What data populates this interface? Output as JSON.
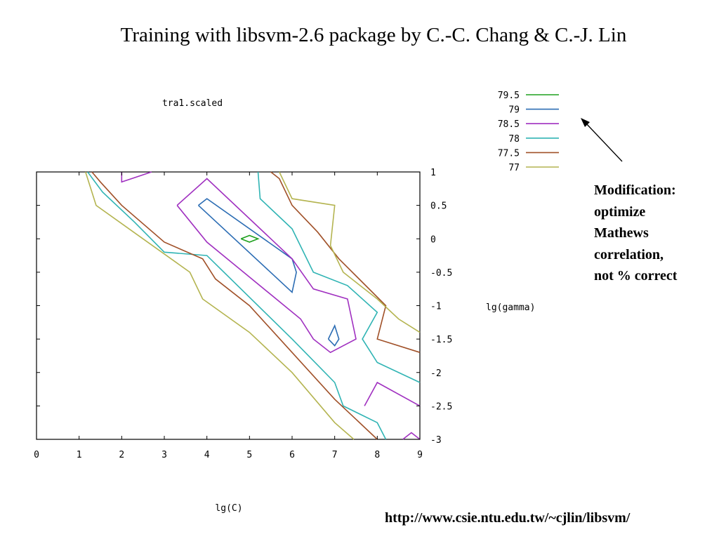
{
  "slide": {
    "title": "Training with libsvm-2.6  package by C.-C. Chang & C.-J. Lin",
    "annotation_lines": [
      "Modification:",
      "optimize",
      "Mathews",
      "correlation,",
      "not % correct"
    ],
    "url": "http://www.csie.ntu.edu.tw/~cjlin/libsvm/"
  },
  "chart_data": {
    "type": "contour",
    "title": "tra1.scaled",
    "xlabel": "lg(C)",
    "ylabel": "lg(gamma)",
    "xlim": [
      0,
      9
    ],
    "ylim": [
      -3,
      1
    ],
    "xticks": [
      "0",
      "1",
      "2",
      "3",
      "4",
      "5",
      "6",
      "7",
      "8",
      "9"
    ],
    "yticks": [
      "1",
      "0.5",
      "0",
      "-0.5",
      "-1",
      "-1.5",
      "-2",
      "-2.5",
      "-3"
    ],
    "legend_position": "top-right",
    "series": [
      {
        "name": "79.5",
        "color": "#1ea01e",
        "lines": [
          [
            [
              4.8,
              0
            ],
            [
              5.0,
              0.05
            ],
            [
              5.2,
              0
            ],
            [
              5.0,
              -0.05
            ],
            [
              4.8,
              0
            ]
          ]
        ]
      },
      {
        "name": "79",
        "color": "#2c6db4",
        "lines": [
          [
            [
              3.8,
              0.5
            ],
            [
              4.0,
              0.6
            ],
            [
              6.0,
              -0.3
            ],
            [
              6.1,
              -0.5
            ],
            [
              6.0,
              -0.8
            ],
            [
              3.8,
              0.5
            ]
          ],
          [
            [
              6.85,
              -1.5
            ],
            [
              7.0,
              -1.3
            ],
            [
              7.1,
              -1.5
            ],
            [
              7.0,
              -1.6
            ],
            [
              6.85,
              -1.5
            ]
          ]
        ]
      },
      {
        "name": "78.5",
        "color": "#a030c0",
        "lines": [
          [
            [
              2.0,
              1.0
            ],
            [
              2.0,
              0.85
            ],
            [
              2.7,
              1.0
            ]
          ],
          [
            [
              3.3,
              0.5
            ],
            [
              4.0,
              0.9
            ],
            [
              6.0,
              -0.3
            ],
            [
              6.5,
              -0.75
            ],
            [
              7.3,
              -0.9
            ],
            [
              7.5,
              -1.5
            ],
            [
              6.9,
              -1.7
            ],
            [
              6.5,
              -1.5
            ],
            [
              6.2,
              -1.2
            ],
            [
              4.0,
              -0.05
            ],
            [
              3.3,
              0.5
            ]
          ],
          [
            [
              7.7,
              -2.5
            ],
            [
              8.0,
              -2.15
            ],
            [
              9.0,
              -2.5
            ]
          ],
          [
            [
              8.6,
              -3.0
            ],
            [
              8.8,
              -2.9
            ],
            [
              9.0,
              -3.0
            ]
          ]
        ]
      },
      {
        "name": "78",
        "color": "#30b4b4",
        "lines": [
          [
            [
              5.2,
              1.0
            ],
            [
              5.25,
              0.6
            ],
            [
              6.0,
              0.15
            ],
            [
              6.5,
              -0.5
            ],
            [
              7.3,
              -0.7
            ],
            [
              8.0,
              -1.1
            ],
            [
              7.65,
              -1.5
            ],
            [
              8.0,
              -1.85
            ],
            [
              9.0,
              -2.15
            ]
          ],
          [
            [
              1.2,
              1.0
            ],
            [
              1.55,
              0.7
            ],
            [
              2.3,
              0.25
            ],
            [
              3.0,
              -0.2
            ],
            [
              4.0,
              -0.25
            ],
            [
              6.0,
              -1.5
            ],
            [
              7.0,
              -2.15
            ],
            [
              7.2,
              -2.5
            ],
            [
              8.0,
              -2.75
            ],
            [
              8.2,
              -3.0
            ]
          ]
        ]
      },
      {
        "name": "77.5",
        "color": "#a05028",
        "lines": [
          [
            [
              5.5,
              1.0
            ],
            [
              5.7,
              0.9
            ],
            [
              6.0,
              0.5
            ],
            [
              6.6,
              0.1
            ],
            [
              7.1,
              -0.3
            ],
            [
              8.2,
              -1.0
            ],
            [
              8.0,
              -1.5
            ],
            [
              9.0,
              -1.7
            ]
          ],
          [
            [
              1.3,
              1.0
            ],
            [
              1.5,
              0.85
            ],
            [
              2.0,
              0.5
            ],
            [
              3.0,
              -0.05
            ],
            [
              3.9,
              -0.3
            ],
            [
              4.2,
              -0.6
            ],
            [
              5.0,
              -1.0
            ],
            [
              6.0,
              -1.7
            ],
            [
              7.0,
              -2.4
            ],
            [
              8.0,
              -3.0
            ]
          ]
        ]
      },
      {
        "name": "77",
        "color": "#b4b450",
        "lines": [
          [
            [
              5.7,
              1.0
            ],
            [
              6.0,
              0.6
            ],
            [
              7.0,
              0.5
            ],
            [
              6.9,
              -0.1
            ],
            [
              7.2,
              -0.5
            ],
            [
              8.0,
              -0.9
            ],
            [
              8.5,
              -1.2
            ],
            [
              9.0,
              -1.4
            ]
          ],
          [
            [
              1.15,
              1.0
            ],
            [
              1.4,
              0.5
            ],
            [
              2.5,
              0.0
            ],
            [
              3.6,
              -0.5
            ],
            [
              3.9,
              -0.9
            ],
            [
              5.0,
              -1.4
            ],
            [
              6.0,
              -2.0
            ],
            [
              7.0,
              -2.75
            ],
            [
              7.45,
              -3.0
            ]
          ]
        ]
      }
    ]
  }
}
